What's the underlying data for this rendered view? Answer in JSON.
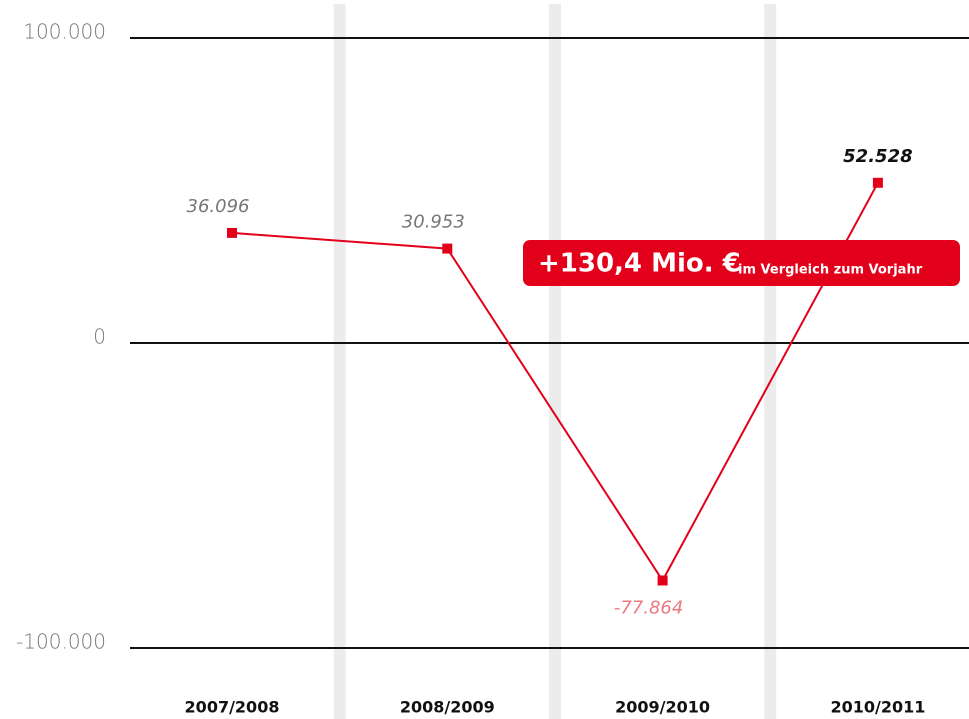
{
  "chart_data": {
    "type": "line",
    "categories": [
      "2007/2008",
      "2008/2009",
      "2009/2010",
      "2010/2011"
    ],
    "series": [
      {
        "color": "#e2001a",
        "values": [
          36096,
          30953,
          -77864,
          52528
        ],
        "value_labels": [
          "36.096",
          "30.953",
          "-77.864",
          "52.528"
        ]
      }
    ],
    "ylim": [
      -100000,
      100000
    ],
    "yticks": [
      {
        "value": -100000,
        "label": "-100.000"
      },
      0,
      {
        "value": 100000,
        "label": "100.000"
      }
    ],
    "grid": true,
    "annotation": {
      "main": "+130,4 Mio. €",
      "sub": "im Vergleich zum Vorjahr"
    }
  }
}
